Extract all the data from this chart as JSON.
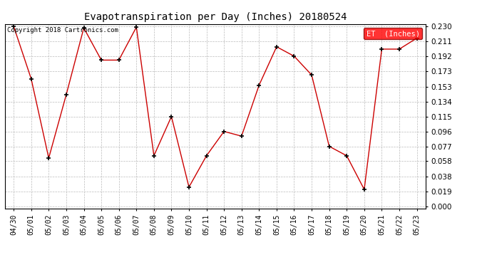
{
  "title": "Evapotranspiration per Day (Inches) 20180524",
  "copyright": "Copyright 2018 Cartronics.com",
  "legend_label": "ET  (Inches)",
  "legend_bg": "#FF0000",
  "legend_text_color": "#FFFFFF",
  "line_color": "#CC0000",
  "marker_color": "#000000",
  "background_color": "#FFFFFF",
  "grid_color": "#BBBBBB",
  "dates": [
    "04/30",
    "05/01",
    "05/02",
    "05/03",
    "05/04",
    "05/05",
    "05/06",
    "05/07",
    "05/08",
    "05/09",
    "05/10",
    "05/11",
    "05/12",
    "05/13",
    "05/14",
    "05/15",
    "05/16",
    "05/17",
    "05/18",
    "05/19",
    "05/20",
    "05/21",
    "05/22",
    "05/23"
  ],
  "values": [
    0.23,
    0.163,
    0.062,
    0.143,
    0.228,
    0.187,
    0.187,
    0.229,
    0.065,
    0.115,
    0.025,
    0.065,
    0.096,
    0.09,
    0.155,
    0.204,
    0.192,
    0.168,
    0.077,
    0.065,
    0.022,
    0.201,
    0.201,
    0.215
  ],
  "ylim_min": -0.002,
  "ylim_max": 0.233,
  "yticks": [
    0.0,
    0.019,
    0.038,
    0.058,
    0.077,
    0.096,
    0.115,
    0.134,
    0.153,
    0.173,
    0.192,
    0.211,
    0.23
  ]
}
